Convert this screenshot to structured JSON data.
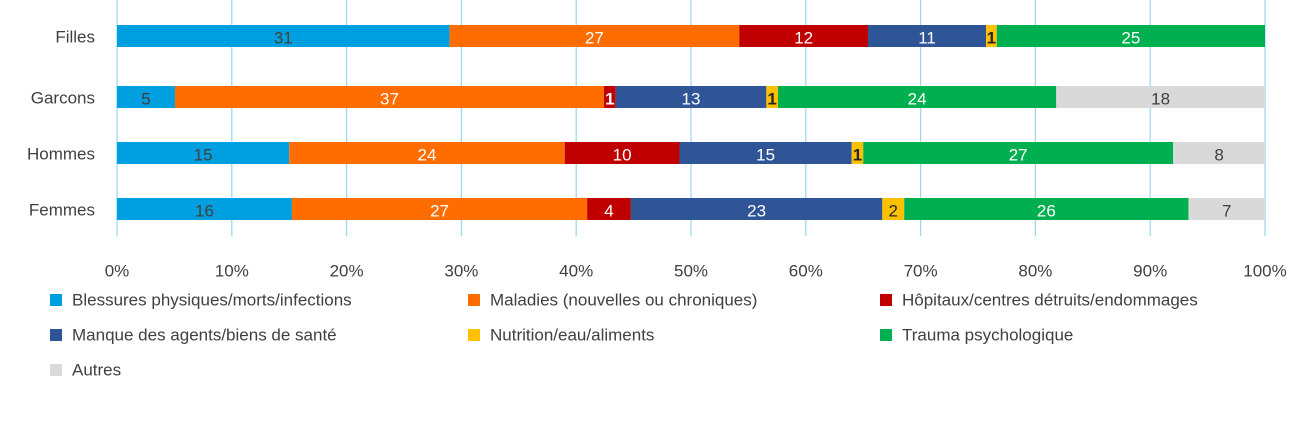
{
  "chart_data": {
    "type": "stacked_bar_100",
    "orientation": "horizontal",
    "categories": [
      "Filles",
      "Garcons",
      "Hommes",
      "Femmes"
    ],
    "series": [
      {
        "name": "Blessures physiques/morts/infections",
        "color": "#009fdf",
        "label_color": "#404040",
        "values": [
          31,
          5,
          15,
          16
        ]
      },
      {
        "name": "Maladies (nouvelles ou chroniques)",
        "color": "#ff6d00",
        "label_color": "#ffffff",
        "values": [
          27,
          37,
          24,
          27
        ]
      },
      {
        "name": "Hôpitaux/centres détruits/endommages",
        "color": "#c00000",
        "label_color": "#ffffff",
        "values": [
          12,
          1,
          10,
          4
        ]
      },
      {
        "name": "Manque des agents/biens de santé",
        "color": "#2f5597",
        "label_color": "#ffffff",
        "values": [
          11,
          13,
          15,
          23
        ]
      },
      {
        "name": "Nutrition/eau/aliments",
        "color": "#ffc000",
        "label_color": "#262626",
        "values": [
          1,
          1,
          1,
          2
        ]
      },
      {
        "name": "Trauma psychologique",
        "color": "#00b050",
        "label_color": "#ffffff",
        "values": [
          25,
          24,
          27,
          26
        ]
      },
      {
        "name": "Autres",
        "color": "#d9d9d9",
        "label_color": "#404040",
        "values": [
          null,
          18,
          8,
          7
        ]
      }
    ],
    "xlim": [
      0,
      100
    ],
    "xticks": [
      {
        "value": 0,
        "label": "0%"
      },
      {
        "value": 10,
        "label": "10%"
      },
      {
        "value": 20,
        "label": "20%"
      },
      {
        "value": 30,
        "label": "30%"
      },
      {
        "value": 40,
        "label": "40%"
      },
      {
        "value": 50,
        "label": "50%"
      },
      {
        "value": 60,
        "label": "60%"
      },
      {
        "value": 70,
        "label": "70%"
      },
      {
        "value": 80,
        "label": "80%"
      },
      {
        "value": 90,
        "label": "90%"
      },
      {
        "value": 100,
        "label": "100%"
      }
    ],
    "grid": true,
    "grid_color": "#9fd8f0",
    "legend": "bottom"
  }
}
